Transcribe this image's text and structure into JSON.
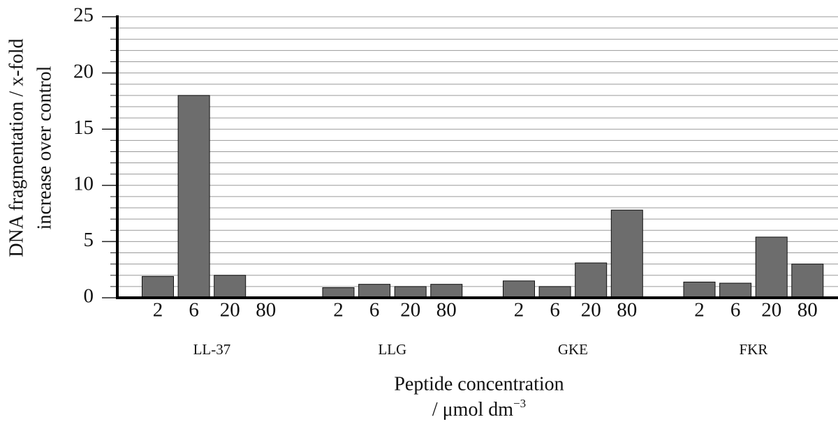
{
  "chart_data": {
    "type": "bar",
    "ylabel": [
      "DNA fragmentation / x-fold",
      "increase over control"
    ],
    "xlabel": [
      "Peptide concentration",
      "/ μmol dm"
    ],
    "xlabel_exponent": "−3",
    "color": "#6d6d6d",
    "ylim": [
      0,
      25
    ],
    "yticks": [
      0,
      5,
      10,
      15,
      20,
      25
    ],
    "minor_yticks": [
      0,
      1,
      2,
      3,
      4,
      5,
      6,
      7,
      8,
      9,
      10,
      11,
      12,
      13,
      14,
      15,
      16,
      17,
      18,
      19,
      20,
      21,
      22,
      23,
      24,
      25
    ],
    "grid": true,
    "groups": [
      {
        "name": "LL-37",
        "categories": [
          "2",
          "6",
          "20",
          "80"
        ],
        "values": [
          1.9,
          18.0,
          2.0,
          0
        ]
      },
      {
        "name": "LLG",
        "categories": [
          "2",
          "6",
          "20",
          "80"
        ],
        "values": [
          0.9,
          1.2,
          1.0,
          1.2
        ]
      },
      {
        "name": "GKE",
        "categories": [
          "2",
          "6",
          "20",
          "80"
        ],
        "values": [
          1.5,
          1.0,
          3.1,
          7.8
        ]
      },
      {
        "name": "FKR",
        "categories": [
          "2",
          "6",
          "20",
          "80"
        ],
        "values": [
          1.4,
          1.3,
          5.4,
          3.0
        ]
      }
    ]
  }
}
